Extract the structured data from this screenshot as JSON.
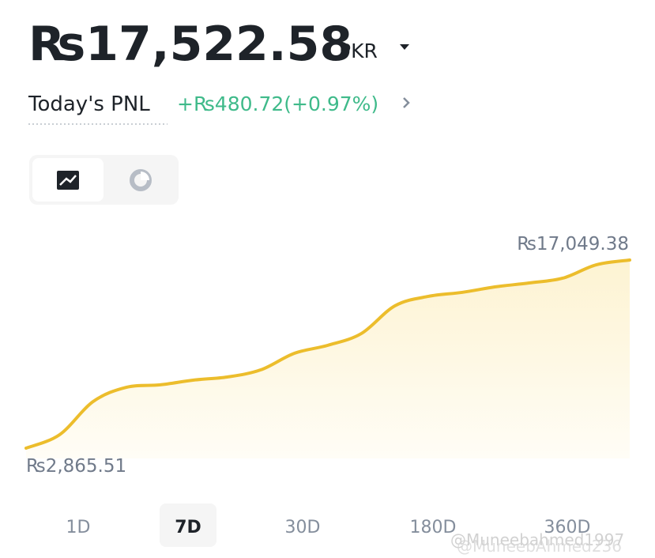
{
  "header": {
    "balance": "₨17,522.58",
    "currency": "PKR",
    "pnl_label": "Today's PNL",
    "pnl_value": "+₨480.72(+0.97%)"
  },
  "chart_data": {
    "type": "line",
    "color": "#ecbd2c",
    "values": [
      2865.51,
      3880,
      6380,
      7460,
      7640,
      8000,
      8230,
      8770,
      10020,
      10620,
      11510,
      13600,
      14310,
      14610,
      15030,
      15320,
      15680,
      16690,
      17049.38
    ],
    "min_label": "₨2,865.51",
    "max_label": "₨17,049.38"
  },
  "tabs": [
    "1D",
    "7D",
    "30D",
    "180D",
    "360D"
  ],
  "selected_tab": 1,
  "watermarks": [
    "@Muneebahmed1997",
    "@MuneebAhmed236"
  ]
}
